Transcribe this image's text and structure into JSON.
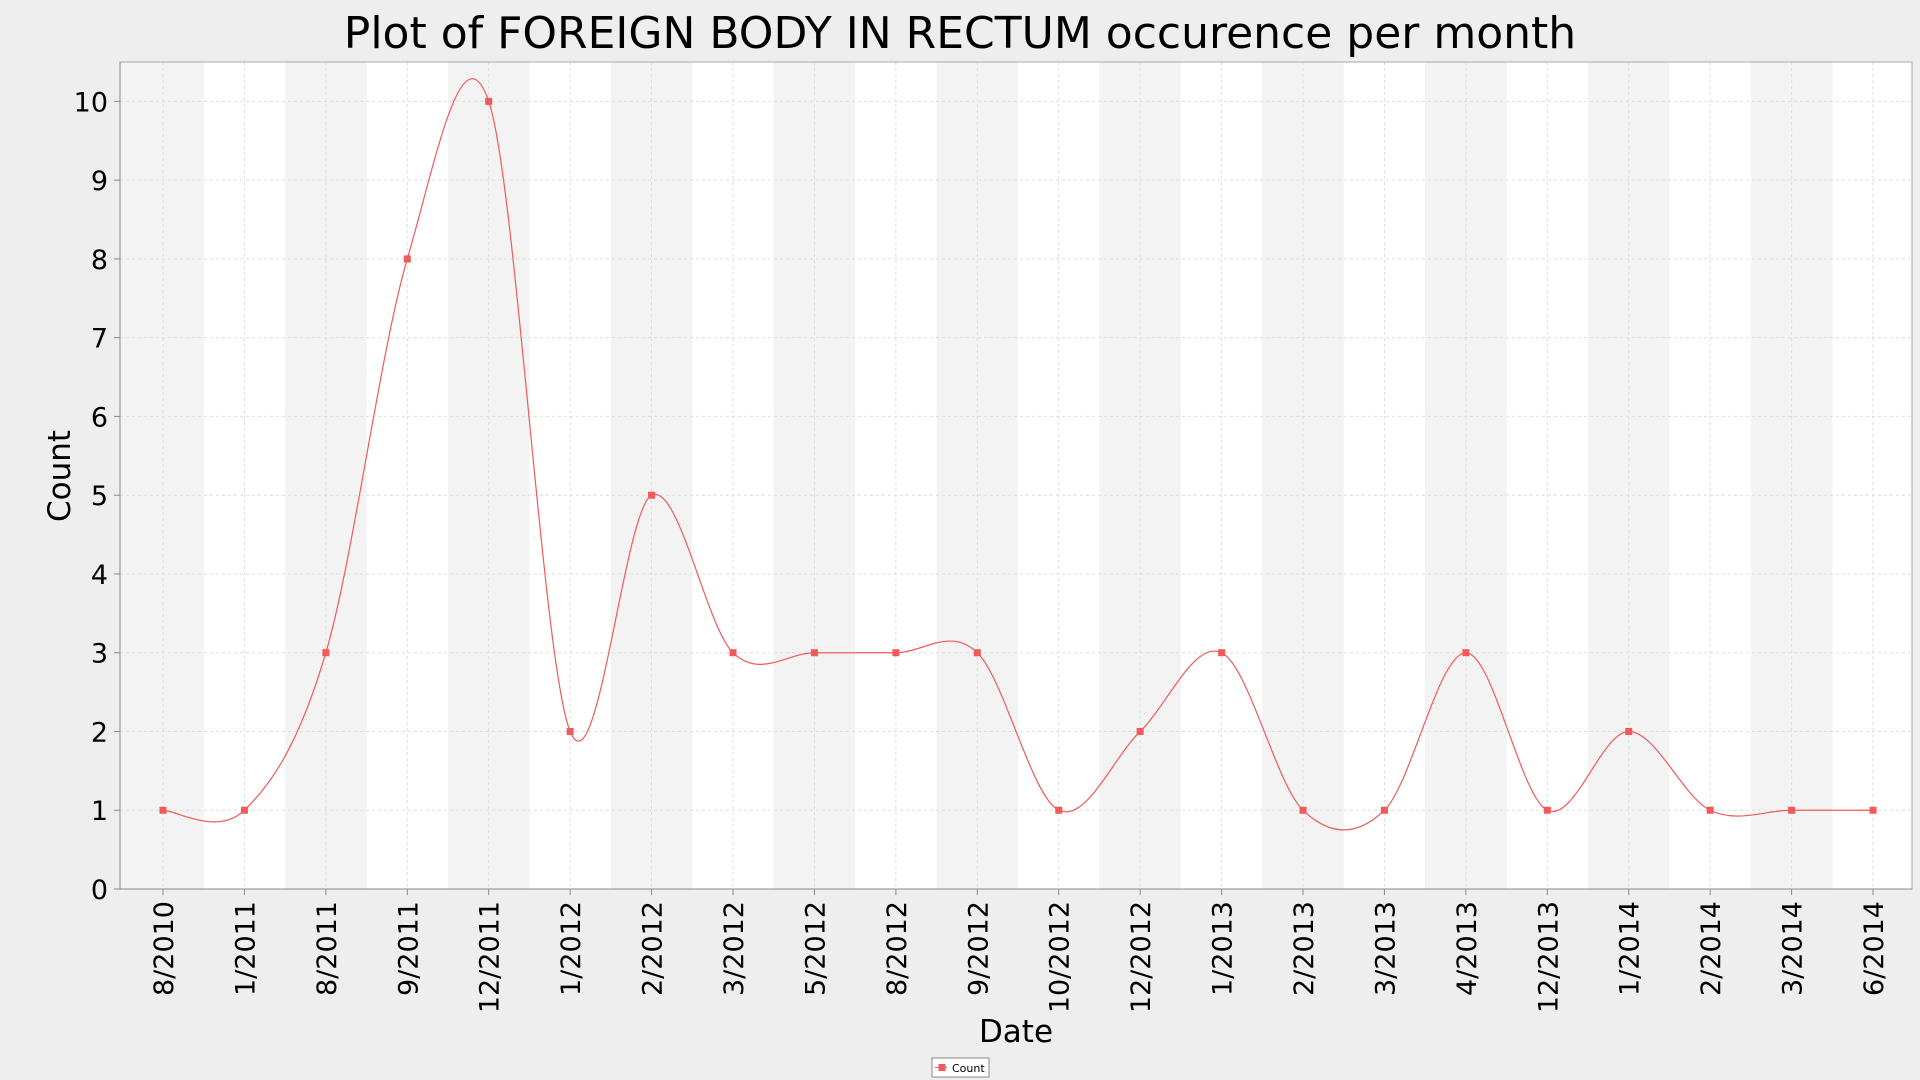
{
  "chart_data": {
    "type": "line",
    "title": "Plot of FOREIGN BODY IN RECTUM occurence per month",
    "xlabel": "Date",
    "ylabel": "Count",
    "ylim": [
      0,
      10.5
    ],
    "yticks": [
      0,
      1,
      2,
      3,
      4,
      5,
      6,
      7,
      8,
      9,
      10
    ],
    "grid": true,
    "smoothed": true,
    "legend_position": "bottom-center",
    "series": [
      {
        "name": "Count",
        "color": "#f05a5a",
        "x": [
          "8/2010",
          "1/2011",
          "8/2011",
          "9/2011",
          "12/2011",
          "1/2012",
          "2/2012",
          "3/2012",
          "5/2012",
          "8/2012",
          "9/2012",
          "10/2012",
          "12/2012",
          "1/2013",
          "2/2013",
          "3/2013",
          "4/2013",
          "12/2013",
          "1/2014",
          "2/2014",
          "3/2014",
          "6/2014"
        ],
        "values": [
          1,
          1,
          3,
          8,
          10,
          2,
          5,
          3,
          3,
          3,
          3,
          1,
          2,
          3,
          1,
          1,
          3,
          1,
          2,
          1,
          1,
          1
        ]
      }
    ]
  },
  "colors": {
    "plot_band_light": "#ffffff",
    "plot_band_dark": "#f3f3f3",
    "grid": "#dddddd",
    "background": "#eeeeee"
  }
}
